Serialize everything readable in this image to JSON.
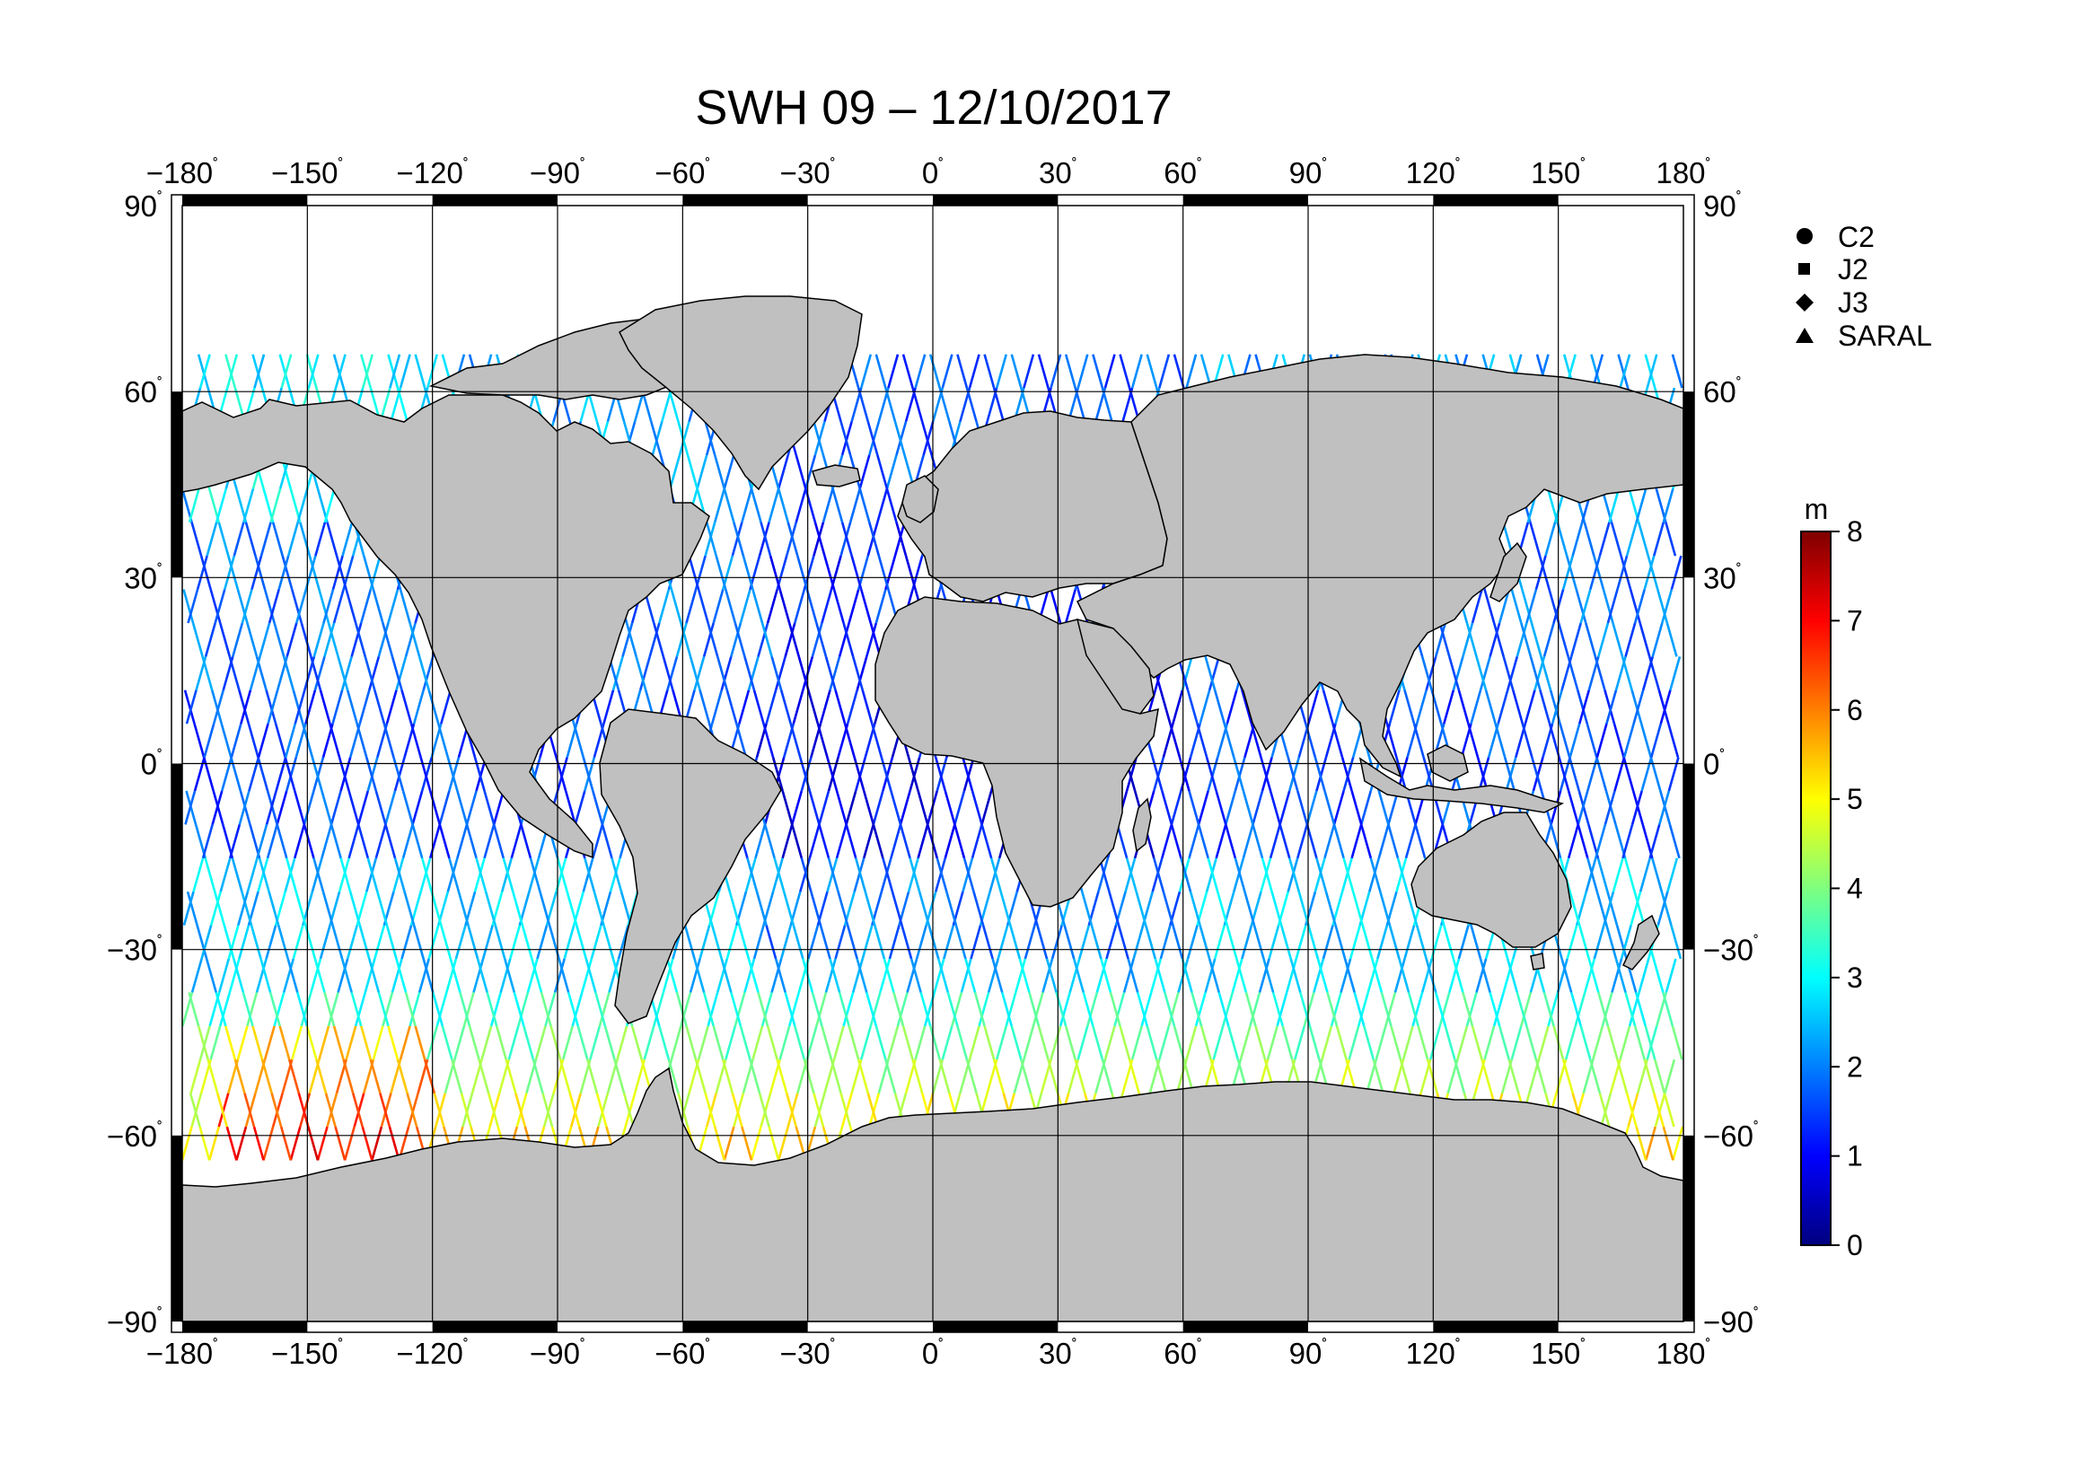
{
  "title": "SWH 09 – 12/10/2017",
  "map": {
    "lon_ticks": [
      "−180",
      "−150",
      "−120",
      "−90",
      "−60",
      "−30",
      "0",
      "30",
      "60",
      "90",
      "120",
      "150",
      "180"
    ],
    "lat_ticks": [
      "90",
      "60",
      "30",
      "0",
      "−30",
      "−60",
      "−90"
    ],
    "degree_symbol": "˚",
    "land_color": "#c0c0c0",
    "ocean_color": "#ffffff"
  },
  "legend": {
    "items": [
      {
        "label": "C2",
        "marker": "circle"
      },
      {
        "label": "J2",
        "marker": "square"
      },
      {
        "label": "J3",
        "marker": "diamond"
      },
      {
        "label": "SARAL",
        "marker": "triangle"
      }
    ]
  },
  "colorbar": {
    "unit": "m",
    "ticks": [
      "0",
      "1",
      "2",
      "3",
      "4",
      "5",
      "6",
      "7",
      "8"
    ],
    "min": 0,
    "max": 8,
    "colors": [
      "#00007f",
      "#0000ff",
      "#007fff",
      "#00ffff",
      "#7fff7f",
      "#ffff00",
      "#ff7f00",
      "#ff0000",
      "#7f0000"
    ]
  }
}
